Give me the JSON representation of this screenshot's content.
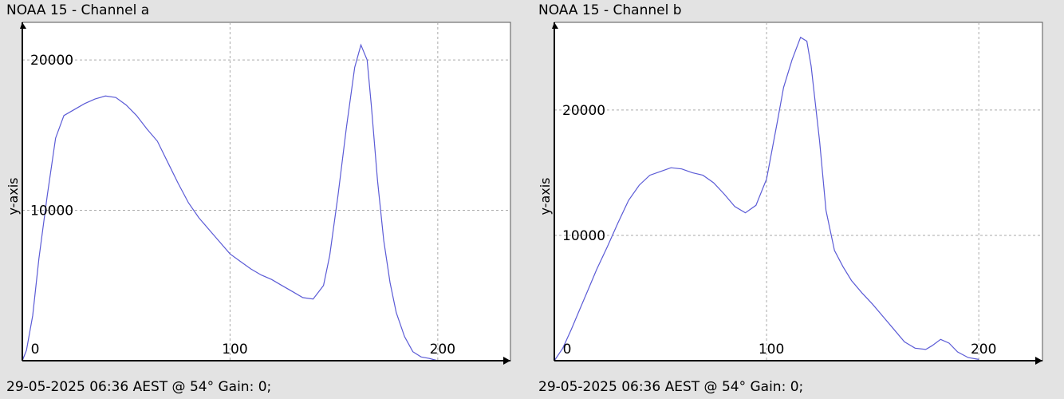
{
  "footer_text": "29-05-2025 06:36 AEST @ 54° Gain: 0;",
  "colors": {
    "background": "#e3e3e3",
    "plot_bg": "#ffffff",
    "line": "#5b5bd6",
    "grid": "#aaaaaa",
    "axis": "#000000"
  },
  "chart_data": [
    {
      "type": "line",
      "title": "NOAA 15 - Channel a",
      "ylabel": "y-axis",
      "xlabel": "",
      "xlim": [
        0,
        235
      ],
      "ylim": [
        0,
        22500
      ],
      "xticks": [
        0,
        100,
        200
      ],
      "yticks": [
        10000,
        20000
      ],
      "xtick_labels": [
        "0",
        "100",
        "200"
      ],
      "ytick_labels": [
        "10000",
        "20000"
      ],
      "grid": true,
      "series": [
        {
          "x": [
            0,
            2,
            5,
            8,
            12,
            16,
            20,
            25,
            30,
            35,
            40,
            45,
            50,
            55,
            60,
            65,
            70,
            75,
            80,
            85,
            90,
            95,
            100,
            105,
            110,
            115,
            120,
            125,
            130,
            135,
            140,
            145,
            148,
            152,
            156,
            160,
            163,
            166,
            168,
            171,
            174,
            177,
            180,
            184,
            188,
            192,
            196,
            200
          ],
          "y": [
            0,
            700,
            3000,
            6800,
            11000,
            14800,
            16300,
            16700,
            17100,
            17400,
            17600,
            17500,
            17000,
            16300,
            15400,
            14600,
            13200,
            11800,
            10500,
            9500,
            8700,
            7900,
            7100,
            6600,
            6100,
            5700,
            5400,
            5000,
            4600,
            4200,
            4100,
            5000,
            7000,
            11000,
            15500,
            19500,
            21000,
            20000,
            17000,
            12000,
            8000,
            5200,
            3200,
            1600,
            600,
            250,
            150,
            0
          ]
        }
      ]
    },
    {
      "type": "line",
      "title": "NOAA 15 - Channel b",
      "ylabel": "y-axis",
      "xlabel": "",
      "xlim": [
        0,
        230
      ],
      "ylim": [
        0,
        27000
      ],
      "xticks": [
        0,
        100,
        200
      ],
      "yticks": [
        10000,
        20000
      ],
      "xtick_labels": [
        "0",
        "100",
        "200"
      ],
      "ytick_labels": [
        "10000",
        "20000"
      ],
      "grid": true,
      "series": [
        {
          "x": [
            0,
            4,
            8,
            12,
            16,
            20,
            25,
            30,
            35,
            40,
            45,
            50,
            55,
            60,
            65,
            70,
            75,
            80,
            85,
            90,
            95,
            100,
            105,
            108,
            112,
            116,
            119,
            121,
            125,
            128,
            132,
            136,
            140,
            145,
            150,
            155,
            160,
            165,
            170,
            175,
            178,
            182,
            186,
            190,
            195,
            200
          ],
          "y": [
            0,
            1000,
            2500,
            4100,
            5700,
            7300,
            9100,
            11000,
            12800,
            14000,
            14800,
            15100,
            15400,
            15300,
            15000,
            14800,
            14200,
            13300,
            12300,
            11800,
            12400,
            14500,
            19000,
            21800,
            24000,
            25800,
            25500,
            23500,
            17500,
            12000,
            8800,
            7500,
            6400,
            5400,
            4500,
            3500,
            2500,
            1500,
            1000,
            900,
            1200,
            1700,
            1400,
            700,
            250,
            100
          ]
        }
      ]
    }
  ]
}
